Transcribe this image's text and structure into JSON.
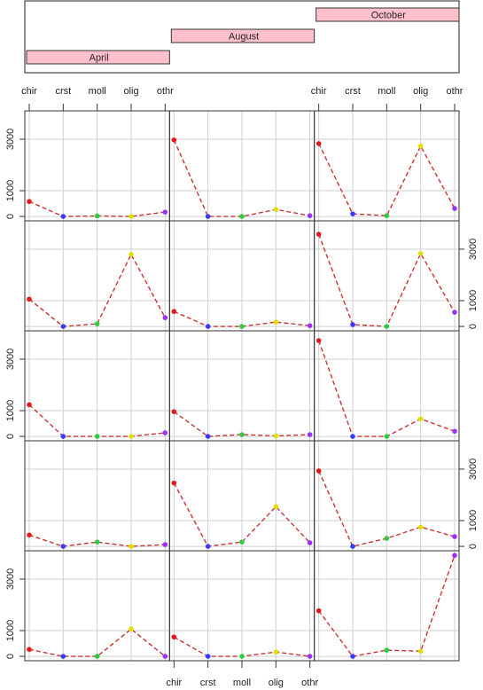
{
  "chart_data": {
    "type": "lattice",
    "categories": [
      "chir",
      "crst",
      "moll",
      "olig",
      "othr"
    ],
    "point_colors": [
      "#e31a1c",
      "#3a3aff",
      "#2ecc40",
      "#e0e000",
      "#9b30ff"
    ],
    "line_color": "#cc3333",
    "ylim": [
      -170,
      4100
    ],
    "yticks": [
      0,
      1000,
      3000
    ],
    "grid": true,
    "shingle": {
      "levels": [
        "April",
        "August",
        "October"
      ],
      "color": "#ffc0cb"
    },
    "panels": [
      {
        "values": [
          580,
          0,
          20,
          0,
          170
        ]
      },
      {
        "values": [
          2970,
          0,
          0,
          270,
          30
        ]
      },
      {
        "values": [
          2830,
          100,
          30,
          2730,
          310
        ]
      },
      {
        "values": [
          1060,
          0,
          100,
          2800,
          340
        ]
      },
      {
        "values": [
          580,
          0,
          0,
          170,
          30
        ]
      },
      {
        "values": [
          3580,
          70,
          0,
          2830,
          550
        ]
      },
      {
        "values": [
          1230,
          0,
          0,
          0,
          140
        ]
      },
      {
        "values": [
          960,
          0,
          70,
          20,
          70
        ]
      },
      {
        "values": [
          3720,
          0,
          0,
          680,
          200
        ]
      },
      {
        "values": [
          440,
          0,
          170,
          0,
          70
        ]
      },
      {
        "values": [
          2460,
          0,
          170,
          1540,
          140
        ]
      },
      {
        "values": [
          2930,
          0,
          310,
          750,
          380
        ]
      },
      {
        "values": [
          270,
          0,
          0,
          1060,
          0
        ]
      },
      {
        "values": [
          750,
          0,
          0,
          170,
          0
        ]
      },
      {
        "values": [
          1770,
          0,
          240,
          200,
          3920
        ]
      }
    ]
  }
}
